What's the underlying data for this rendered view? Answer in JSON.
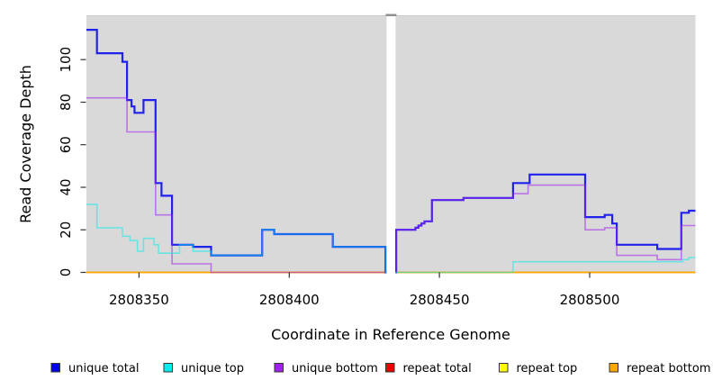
{
  "chart_data": {
    "type": "line",
    "style": "step",
    "title": "",
    "xlabel": "Coordinate in Reference Genome",
    "ylabel": "Read Coverage Depth",
    "xlim": [
      2808332.5,
      2808535.2
    ],
    "ylim": [
      0,
      121
    ],
    "x_ticks": [
      2808350,
      2808400,
      2808450,
      2808500
    ],
    "y_ticks": [
      0,
      20,
      40,
      60,
      80,
      100
    ],
    "grid": false,
    "panel_background": "#d9d9d9",
    "gap_between_panels": {
      "from": 2808432.4,
      "to": 2808435.4
    },
    "panels": [
      {
        "from": 2808332.5,
        "to": 2808432.4
      },
      {
        "from": 2808435.4,
        "to": 2808535.2
      }
    ],
    "series": [
      {
        "name": "repeat total",
        "color": "#EE0000",
        "opacity": 1,
        "width": 1.4,
        "panels": [
          [
            [
              2808332.5,
              0
            ]
          ],
          [
            [
              2808435.4,
              0
            ]
          ]
        ]
      },
      {
        "name": "repeat top",
        "color": "#FFFF00",
        "opacity": 1,
        "width": 1.4,
        "panels": [
          [
            [
              2808332.5,
              0
            ]
          ],
          [
            [
              2808435.4,
              0
            ]
          ]
        ]
      },
      {
        "name": "repeat bottom",
        "color": "#FFA500",
        "opacity": 1,
        "width": 1.6,
        "panels": [
          [
            [
              2808332.5,
              0
            ]
          ],
          [
            [
              2808435.4,
              0
            ]
          ]
        ]
      },
      {
        "name": "unique total",
        "color": "#0000EE",
        "opacity": 0.85,
        "width": 2.2,
        "panels": [
          [
            [
              2808332.5,
              114
            ],
            [
              2808336,
              103
            ],
            [
              2808344.5,
              99
            ],
            [
              2808346,
              81
            ],
            [
              2808347.5,
              78
            ],
            [
              2808348.5,
              75
            ],
            [
              2808351.5,
              81
            ],
            [
              2808355.5,
              42
            ],
            [
              2808357.5,
              36
            ],
            [
              2808361,
              13
            ],
            [
              2808368,
              12
            ],
            [
              2808374,
              8
            ],
            [
              2808391,
              20
            ],
            [
              2808395,
              18
            ],
            [
              2808414.5,
              12
            ],
            [
              2808432,
              0
            ]
          ],
          [
            [
              2808435.4,
              0
            ],
            [
              2808435.6,
              20
            ],
            [
              2808442,
              21
            ],
            [
              2808443,
              22
            ],
            [
              2808444,
              23
            ],
            [
              2808445,
              24
            ],
            [
              2808447.5,
              34
            ],
            [
              2808458,
              35
            ],
            [
              2808474.5,
              42
            ],
            [
              2808480,
              46
            ],
            [
              2808498.5,
              26
            ],
            [
              2808505,
              27
            ],
            [
              2808507.5,
              23
            ],
            [
              2808509,
              13
            ],
            [
              2808522.5,
              11
            ],
            [
              2808530.5,
              28
            ],
            [
              2808533,
              29
            ]
          ]
        ]
      },
      {
        "name": "unique bottom",
        "color": "#A020F0",
        "opacity": 0.55,
        "width": 1.6,
        "panels": [
          [
            [
              2808332.5,
              82
            ],
            [
              2808346,
              66
            ],
            [
              2808355.5,
              27
            ],
            [
              2808361,
              4
            ],
            [
              2808374,
              0
            ]
          ],
          [
            [
              2808435.4,
              0
            ],
            [
              2808435.6,
              20
            ],
            [
              2808442,
              21
            ],
            [
              2808443,
              22
            ],
            [
              2808444,
              23
            ],
            [
              2808445,
              24
            ],
            [
              2808447.5,
              34
            ],
            [
              2808458,
              35
            ],
            [
              2808474.5,
              37
            ],
            [
              2808479.5,
              41
            ],
            [
              2808498.5,
              20
            ],
            [
              2808505,
              21
            ],
            [
              2808509,
              8
            ],
            [
              2808522.5,
              6
            ],
            [
              2808530.5,
              22
            ]
          ]
        ]
      },
      {
        "name": "unique top",
        "color": "#00EEEE",
        "opacity": 0.5,
        "width": 1.6,
        "panels": [
          [
            [
              2808332.5,
              32
            ],
            [
              2808336,
              21
            ],
            [
              2808344.5,
              17
            ],
            [
              2808347,
              15
            ],
            [
              2808349.5,
              10
            ],
            [
              2808351.5,
              16
            ],
            [
              2808355,
              13
            ],
            [
              2808356.5,
              9
            ],
            [
              2808363.5,
              13
            ],
            [
              2808368,
              10
            ],
            [
              2808374,
              8
            ],
            [
              2808391,
              20
            ],
            [
              2808395,
              18
            ],
            [
              2808414.5,
              12
            ],
            [
              2808432,
              0
            ]
          ],
          [
            [
              2808435.4,
              0
            ],
            [
              2808474.5,
              5
            ],
            [
              2808531,
              6
            ],
            [
              2808533,
              7
            ]
          ]
        ]
      }
    ]
  },
  "legend": {
    "items": [
      {
        "label": "unique total",
        "color": "#0000EE"
      },
      {
        "label": "unique top",
        "color": "#00EEEE"
      },
      {
        "label": "unique bottom",
        "color": "#A020F0"
      },
      {
        "label": "repeat total",
        "color": "#EE0000"
      },
      {
        "label": "repeat top",
        "color": "#FFFF00"
      },
      {
        "label": "repeat bottom",
        "color": "#FFA500"
      }
    ]
  }
}
